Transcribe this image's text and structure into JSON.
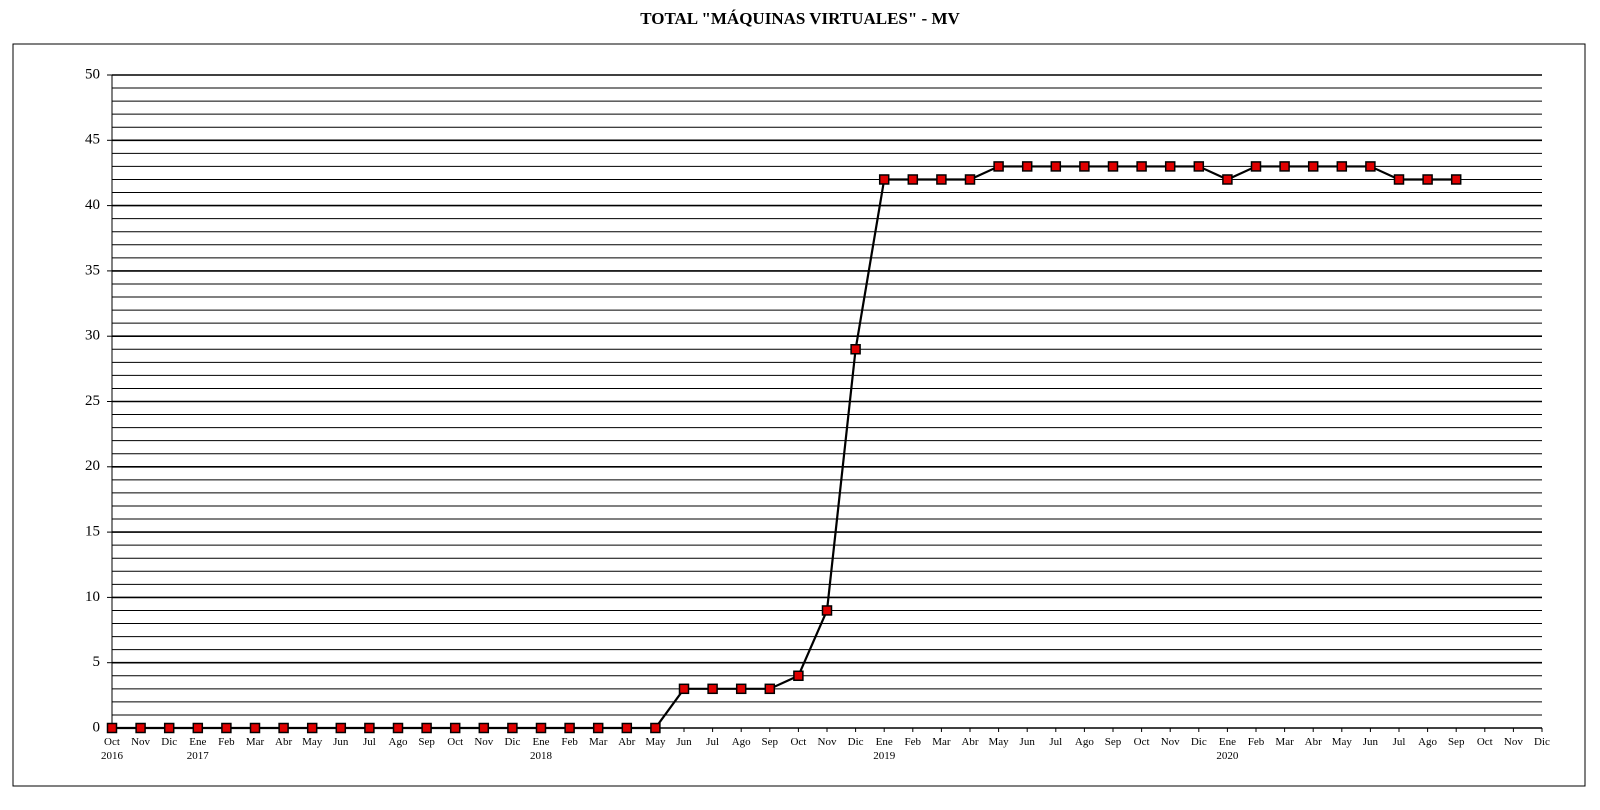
{
  "chart_data": {
    "type": "line",
    "title": "TOTAL \"MÁQUINAS VIRTUALES\" - MV",
    "categories": [
      "Oct 2016",
      "Nov",
      "Dic",
      "Ene 2017",
      "Feb",
      "Mar",
      "Abr",
      "May",
      "Jun",
      "Jul",
      "Ago",
      "Sep",
      "Oct",
      "Nov",
      "Dic",
      "Ene 2018",
      "Feb",
      "Mar",
      "Abr",
      "May",
      "Jun",
      "Jul",
      "Ago",
      "Sep",
      "Oct",
      "Nov",
      "Dic",
      "Ene 2019",
      "Feb",
      "Mar",
      "Abr",
      "May",
      "Jun",
      "Jul",
      "Ago",
      "Sep",
      "Oct",
      "Nov",
      "Dic",
      "Ene 2020",
      "Feb",
      "Mar",
      "Abr",
      "May",
      "Jun",
      "Jul",
      "Ago",
      "Sep",
      "Oct",
      "Nov",
      "Dic"
    ],
    "series": [
      {
        "color": "#e00000",
        "line_color": "#000000",
        "values": [
          0,
          0,
          0,
          0,
          0,
          0,
          0,
          0,
          0,
          0,
          0,
          0,
          0,
          0,
          0,
          0,
          0,
          0,
          0,
          0,
          3,
          3,
          3,
          3,
          4,
          9,
          29,
          42,
          42,
          42,
          42,
          43,
          43,
          43,
          43,
          43,
          43,
          43,
          43,
          42,
          43,
          43,
          43,
          43,
          43,
          42,
          42,
          42,
          null,
          null,
          null
        ]
      }
    ],
    "ylim": [
      0,
      50
    ],
    "yticks": [
      0,
      5,
      10,
      15,
      20,
      25,
      30,
      35,
      40,
      45,
      50
    ],
    "yticks_minor": [
      1,
      2,
      3,
      4,
      6,
      7,
      8,
      9,
      11,
      12,
      13,
      14,
      16,
      17,
      18,
      19,
      21,
      22,
      23,
      24,
      26,
      27,
      28,
      29,
      31,
      32,
      33,
      34,
      36,
      37,
      38,
      39,
      41,
      42,
      43,
      44,
      46,
      47,
      48,
      49
    ],
    "grid": true
  }
}
